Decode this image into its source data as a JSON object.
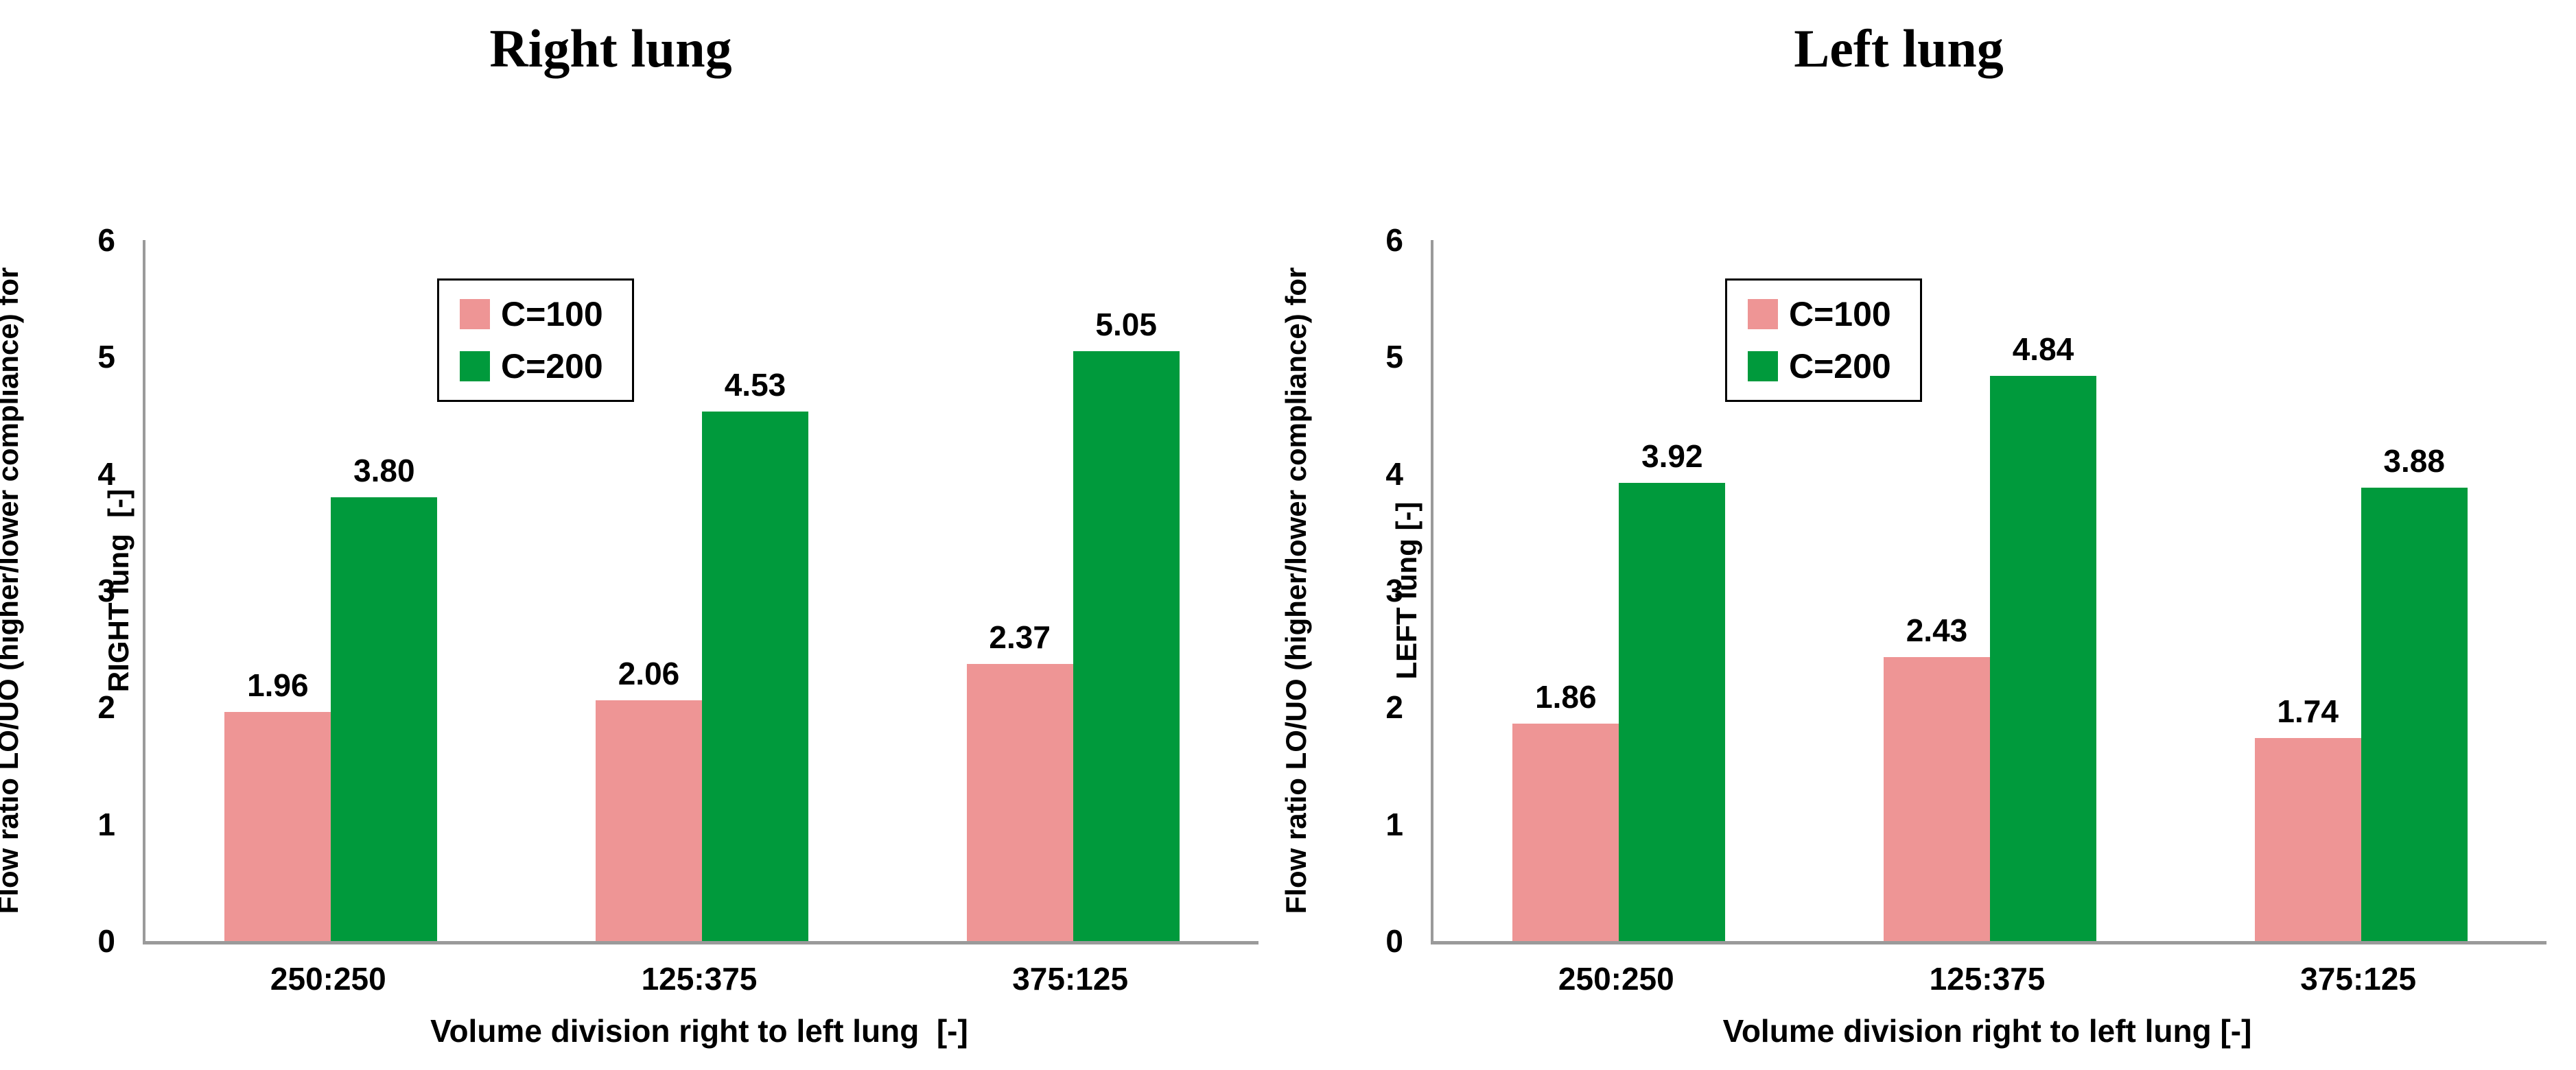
{
  "figure": {
    "background": "#ffffff"
  },
  "colors": {
    "series_c100_pink": "#EE9595",
    "series_c200_green": "#009A3C",
    "axis_line": "#9A9A9A",
    "text": "#000000",
    "legend_border": "#000000",
    "legend_background": "#ffffff"
  },
  "chart_data": [
    {
      "type": "bar",
      "title": "Right lung",
      "categories": [
        "250:250",
        "125:375",
        "375:125"
      ],
      "series": [
        {
          "name": "C=100",
          "color": "#EE9595",
          "values": [
            1.96,
            2.06,
            2.37
          ]
        },
        {
          "name": "C=200",
          "color": "#009A3C",
          "values": [
            3.8,
            4.53,
            5.05
          ]
        }
      ],
      "value_labels": [
        [
          "1.96",
          "2.06",
          "2.37"
        ],
        [
          "3.80",
          "4.53",
          "5.05"
        ]
      ],
      "xlabel": "Volume division right to left lung  [-]",
      "ylabel_line1": "Flow ratio LO/UO (higher/lower compliance) for",
      "ylabel_line2": "RIGHT lung  [-]",
      "ylim": [
        0,
        6
      ],
      "yticks": [
        0,
        1,
        2,
        3,
        4,
        5,
        6
      ],
      "grid": false,
      "legend_position": "inside-upper-left-of-center",
      "legend_entries": [
        "C=100",
        "C=200"
      ]
    },
    {
      "type": "bar",
      "title": "Left lung",
      "categories": [
        "250:250",
        "125:375",
        "375:125"
      ],
      "series": [
        {
          "name": "C=100",
          "color": "#EE9595",
          "values": [
            1.86,
            2.43,
            1.74
          ]
        },
        {
          "name": "C=200",
          "color": "#009A3C",
          "values": [
            3.92,
            4.84,
            3.88
          ]
        }
      ],
      "value_labels": [
        [
          "1.86",
          "2.43",
          "1.74"
        ],
        [
          "3.92",
          "4.84",
          "3.88"
        ]
      ],
      "xlabel": "Volume division right to left lung [-]",
      "ylabel_line1": "Flow ratio LO/UO (higher/lower compliance) for",
      "ylabel_line2": "LEFT lung [-]",
      "ylim": [
        0,
        6
      ],
      "yticks": [
        0,
        1,
        2,
        3,
        4,
        5,
        6
      ],
      "grid": false,
      "legend_position": "inside-upper-left-of-center",
      "legend_entries": [
        "C=100",
        "C=200"
      ]
    }
  ]
}
